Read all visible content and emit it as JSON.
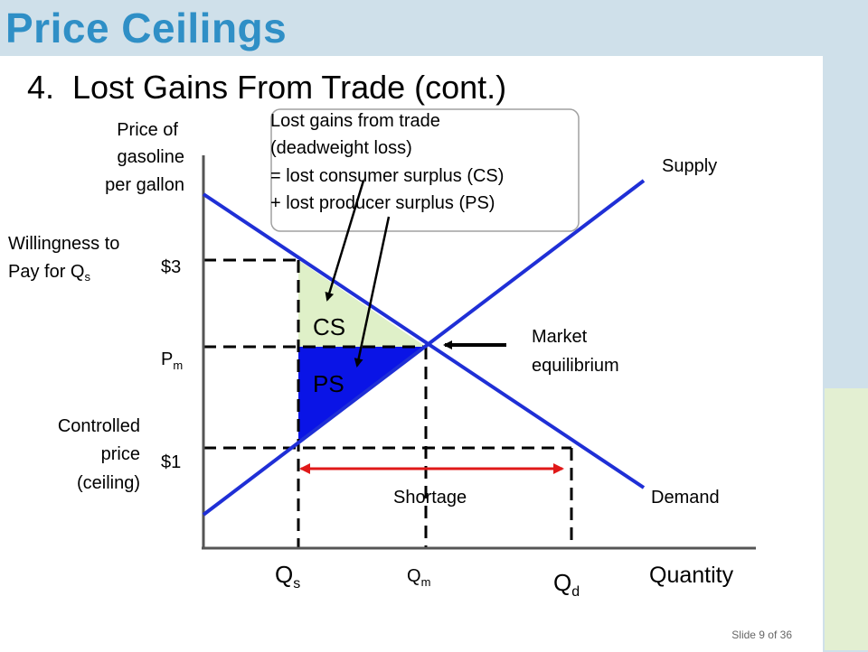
{
  "slide": {
    "title": "Price Ceilings",
    "subtitle_number": "4.",
    "subtitle_text": "Lost Gains From Trade (cont.)",
    "footer": "Slide 9 of 36"
  },
  "diagram": {
    "y_axis_label": [
      "Price of",
      "gasoline",
      "per gallon"
    ],
    "x_axis_label": "Quantity",
    "wtp_label_line1": "Willingness to",
    "wtp_label_line2": "Pay for Q",
    "wtp_label_sub": "s",
    "controlled_label": [
      "Controlled",
      "price",
      "(ceiling)"
    ],
    "price_high": "$3",
    "price_mid": "P",
    "price_mid_sub": "m",
    "price_low": "$1",
    "q_s": "Q",
    "q_s_sub": "s",
    "q_m": "Q",
    "q_m_sub": "m",
    "q_d": "Q",
    "q_d_sub": "d",
    "supply_label": "Supply",
    "demand_label": "Demand",
    "equilibrium_label": [
      "Market",
      "equilibrium"
    ],
    "shortage_label": "Shortage",
    "cs_label": "CS",
    "ps_label": "PS",
    "callout_lines": [
      "Lost gains from trade",
      "(deadweight loss)",
      "= lost consumer surplus (CS)",
      "+ lost producer surplus (PS)"
    ],
    "colors": {
      "curve": "#1f2fd6",
      "cs_fill": "#dff0c8",
      "ps_fill": "#0a14e6",
      "shortage_arrow": "#e01818",
      "title": "#2f8fc6"
    }
  }
}
